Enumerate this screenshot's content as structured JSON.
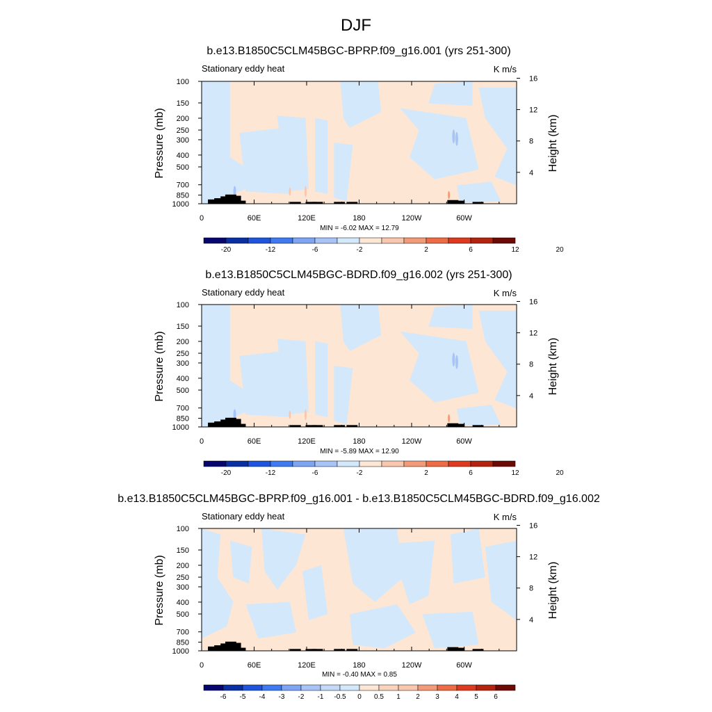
{
  "figure": {
    "title": "DJF"
  },
  "colors": {
    "positive_fill": "#fde6d3",
    "negative_fill": "#d4e8fb",
    "terrain": "#000000"
  },
  "panels": [
    {
      "title": "b.e13.B1850C5CLM45BGC-BPRP.f09_g16.001 (yrs 251-300)",
      "left_label": "Stationary eddy heat",
      "right_label": "K m/s",
      "stats": "MIN =  -6.02  MAX =  12.79",
      "colorbar": {
        "labels": [
          "-20",
          "-12",
          "-6",
          "-2",
          "2",
          "6",
          "12",
          "20"
        ],
        "colors": [
          "#06066e",
          "#0a2fa3",
          "#1f55dc",
          "#3f7af0",
          "#7ea4f4",
          "#a8c4f7",
          "#d4e8fb",
          "#fde6d3",
          "#f9c7ae",
          "#f39a78",
          "#ed6b45",
          "#dd3a1f",
          "#b3240f",
          "#6e0a05"
        ]
      }
    },
    {
      "title": "b.e13.B1850C5CLM45BGC-BDRD.f09_g16.002 (yrs 251-300)",
      "left_label": "Stationary eddy heat",
      "right_label": "K m/s",
      "stats": "MIN =  -5.89  MAX =  12.90",
      "colorbar": {
        "labels": [
          "-20",
          "-12",
          "-6",
          "-2",
          "2",
          "6",
          "12",
          "20"
        ],
        "colors": [
          "#06066e",
          "#0a2fa3",
          "#1f55dc",
          "#3f7af0",
          "#7ea4f4",
          "#a8c4f7",
          "#d4e8fb",
          "#fde6d3",
          "#f9c7ae",
          "#f39a78",
          "#ed6b45",
          "#dd3a1f",
          "#b3240f",
          "#6e0a05"
        ]
      }
    },
    {
      "title": "b.e13.B1850C5CLM45BGC-BPRP.f09_g16.001 - b.e13.B1850C5CLM45BGC-BDRD.f09_g16.002",
      "left_label": "Stationary eddy heat",
      "right_label": "K m/s",
      "stats": "MIN =  -0.40  MAX =   0.85",
      "colorbar": {
        "labels": [
          "-6",
          "-5",
          "-4",
          "-3",
          "-2",
          "-1",
          "-0.5",
          "0",
          "0.5",
          "1",
          "2",
          "3",
          "4",
          "5",
          "6"
        ],
        "colors": [
          "#06066e",
          "#0a2fa3",
          "#1f55dc",
          "#3f7af0",
          "#7ea4f4",
          "#a8c4f7",
          "#c4d9f8",
          "#d4e8fb",
          "#fde6d3",
          "#fbd2bc",
          "#f9c7ae",
          "#f39a78",
          "#ed6b45",
          "#dd3a1f",
          "#b3240f",
          "#6e0a05"
        ]
      }
    }
  ],
  "chart_data": [
    {
      "type": "heatmap",
      "title": "b.e13.B1850C5CLM45BGC-BPRP.f09_g16.001 (yrs 251-300)",
      "subtitle": "Stationary eddy heat",
      "units": "K m/s",
      "xlabel": "",
      "ylabel": "Pressure (mb)",
      "ylabel_right": "Height (km)",
      "x_ticks": [
        "0",
        "60E",
        "120E",
        "180",
        "120W",
        "60W"
      ],
      "y_ticks": [
        "100",
        "150",
        "200",
        "250",
        "300",
        "400",
        "500",
        "700",
        "850",
        "1000"
      ],
      "y_right_ticks": [
        "4",
        "8",
        "12",
        "16"
      ],
      "xlim": [
        0,
        360
      ],
      "ylim": [
        1000,
        100
      ],
      "min": -6.02,
      "max": 12.79
    },
    {
      "type": "heatmap",
      "title": "b.e13.B1850C5CLM45BGC-BDRD.f09_g16.002 (yrs 251-300)",
      "subtitle": "Stationary eddy heat",
      "units": "K m/s",
      "xlabel": "",
      "ylabel": "Pressure (mb)",
      "ylabel_right": "Height (km)",
      "x_ticks": [
        "0",
        "60E",
        "120E",
        "180",
        "120W",
        "60W"
      ],
      "y_ticks": [
        "100",
        "150",
        "200",
        "250",
        "300",
        "400",
        "500",
        "700",
        "850",
        "1000"
      ],
      "y_right_ticks": [
        "4",
        "8",
        "12",
        "16"
      ],
      "xlim": [
        0,
        360
      ],
      "ylim": [
        1000,
        100
      ],
      "min": -5.89,
      "max": 12.9
    },
    {
      "type": "heatmap",
      "title": "b.e13.B1850C5CLM45BGC-BPRP.f09_g16.001 - b.e13.B1850C5CLM45BGC-BDRD.f09_g16.002",
      "subtitle": "Stationary eddy heat",
      "units": "K m/s",
      "xlabel": "",
      "ylabel": "Pressure (mb)",
      "ylabel_right": "Height (km)",
      "x_ticks": [
        "0",
        "60E",
        "120E",
        "180",
        "120W",
        "60W"
      ],
      "y_ticks": [
        "100",
        "150",
        "200",
        "250",
        "300",
        "400",
        "500",
        "700",
        "850",
        "1000"
      ],
      "y_right_ticks": [
        "4",
        "8",
        "12",
        "16"
      ],
      "xlim": [
        0,
        360
      ],
      "ylim": [
        1000,
        100
      ],
      "min": -0.4,
      "max": 0.85
    }
  ]
}
